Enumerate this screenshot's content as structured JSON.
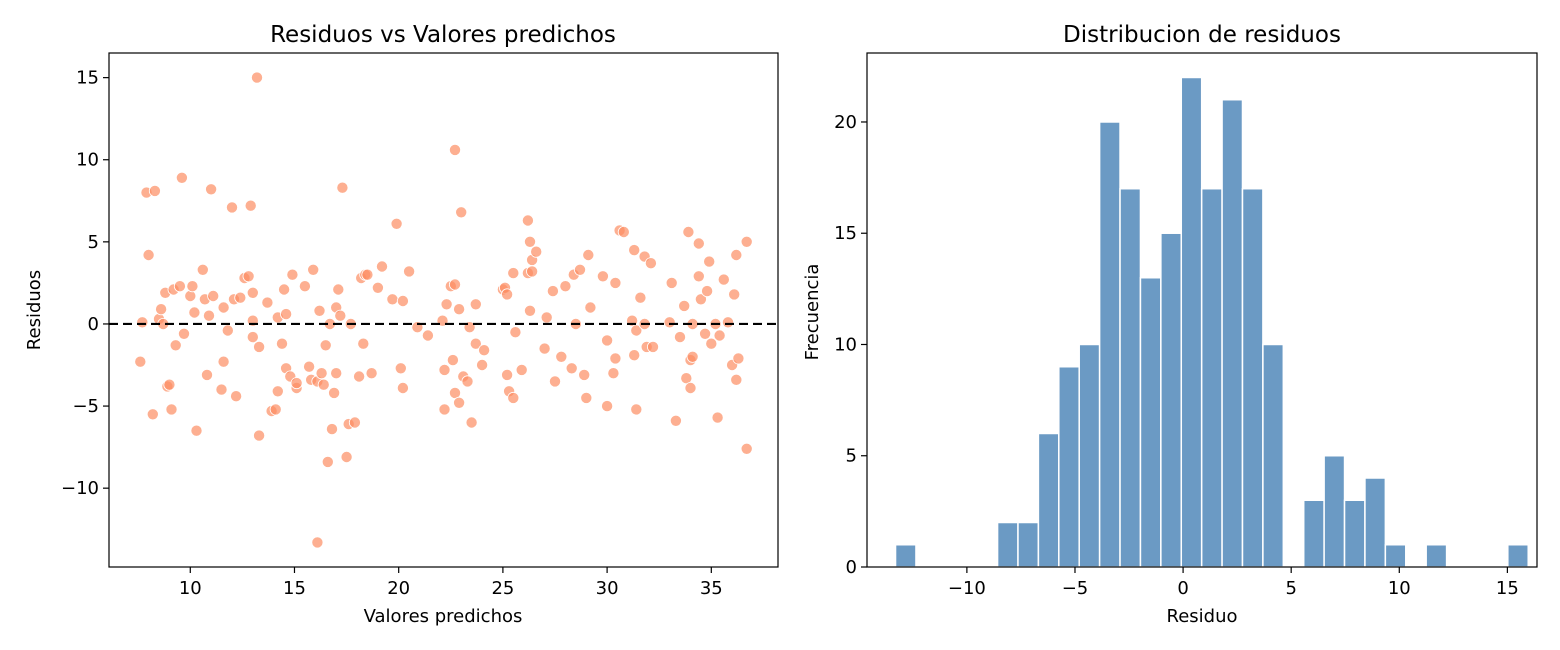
{
  "chart_data": [
    {
      "type": "scatter",
      "title": "Residuos vs Valores predichos",
      "xlabel": "Valores predichos",
      "ylabel": "Residuos",
      "xlim": [
        6.1,
        38.2
      ],
      "ylim": [
        -14.8,
        16.5
      ],
      "xticks": [
        10,
        15,
        20,
        25,
        30,
        35
      ],
      "xtick_labels": [
        "10",
        "15",
        "20",
        "25",
        "30",
        "35"
      ],
      "yticks": [
        -10,
        -5,
        0,
        5,
        10,
        15
      ],
      "ytick_labels": [
        "−10",
        "−5",
        "0",
        "5",
        "10",
        "15"
      ],
      "reference_line": {
        "y": 0,
        "style": "dashed",
        "color": "#000000"
      },
      "marker_color": "#fc8d62",
      "grid": false,
      "points": [
        [
          7.6,
          -2.3
        ],
        [
          7.7,
          0.1
        ],
        [
          7.9,
          8.0
        ],
        [
          8.0,
          4.2
        ],
        [
          8.2,
          -5.5
        ],
        [
          8.3,
          8.1
        ],
        [
          8.5,
          0.3
        ],
        [
          8.6,
          0.9
        ],
        [
          8.7,
          0.0
        ],
        [
          8.8,
          1.9
        ],
        [
          8.9,
          -3.8
        ],
        [
          9.0,
          -3.7
        ],
        [
          9.1,
          -5.2
        ],
        [
          9.2,
          2.1
        ],
        [
          9.3,
          -1.3
        ],
        [
          9.5,
          2.3
        ],
        [
          9.6,
          8.9
        ],
        [
          9.7,
          -0.6
        ],
        [
          10.0,
          1.7
        ],
        [
          10.1,
          2.3
        ],
        [
          10.2,
          0.7
        ],
        [
          10.3,
          -6.5
        ],
        [
          10.6,
          3.3
        ],
        [
          10.7,
          1.5
        ],
        [
          10.8,
          -3.1
        ],
        [
          10.9,
          0.5
        ],
        [
          11.0,
          8.2
        ],
        [
          11.1,
          1.7
        ],
        [
          11.5,
          -4.0
        ],
        [
          11.6,
          1.0
        ],
        [
          11.6,
          -2.3
        ],
        [
          11.8,
          -0.4
        ],
        [
          12.0,
          7.1
        ],
        [
          12.1,
          1.5
        ],
        [
          12.2,
          -4.4
        ],
        [
          12.4,
          1.6
        ],
        [
          12.6,
          2.8
        ],
        [
          12.8,
          2.9
        ],
        [
          12.9,
          7.2
        ],
        [
          13.0,
          1.9
        ],
        [
          13.0,
          0.2
        ],
        [
          13.0,
          -0.8
        ],
        [
          13.2,
          15.0
        ],
        [
          13.3,
          -6.8
        ],
        [
          13.3,
          -1.4
        ],
        [
          13.7,
          1.3
        ],
        [
          13.9,
          -5.3
        ],
        [
          14.1,
          -5.2
        ],
        [
          14.2,
          0.4
        ],
        [
          14.2,
          -4.1
        ],
        [
          14.4,
          -1.2
        ],
        [
          14.5,
          2.1
        ],
        [
          14.6,
          -2.7
        ],
        [
          14.6,
          0.6
        ],
        [
          14.8,
          -3.2
        ],
        [
          14.9,
          3.0
        ],
        [
          15.1,
          -3.9
        ],
        [
          15.1,
          -3.6
        ],
        [
          15.5,
          2.3
        ],
        [
          15.7,
          -2.6
        ],
        [
          15.8,
          -3.4
        ],
        [
          15.9,
          3.3
        ],
        [
          16.1,
          -3.5
        ],
        [
          16.1,
          -13.3
        ],
        [
          16.2,
          0.8
        ],
        [
          16.3,
          -3.0
        ],
        [
          16.4,
          -3.7
        ],
        [
          16.5,
          -1.3
        ],
        [
          16.6,
          -8.4
        ],
        [
          16.7,
          0.0
        ],
        [
          16.8,
          -6.4
        ],
        [
          16.9,
          -4.2
        ],
        [
          17.0,
          1.0
        ],
        [
          17.0,
          -3.0
        ],
        [
          17.1,
          2.1
        ],
        [
          17.2,
          0.5
        ],
        [
          17.3,
          8.3
        ],
        [
          17.5,
          -8.1
        ],
        [
          17.6,
          -6.1
        ],
        [
          17.7,
          0.0
        ],
        [
          17.9,
          -6.0
        ],
        [
          18.1,
          -3.2
        ],
        [
          18.2,
          2.8
        ],
        [
          18.3,
          -1.2
        ],
        [
          18.4,
          3.0
        ],
        [
          18.5,
          3.0
        ],
        [
          18.7,
          -3.0
        ],
        [
          19.0,
          2.2
        ],
        [
          19.2,
          3.5
        ],
        [
          19.7,
          1.5
        ],
        [
          19.9,
          6.1
        ],
        [
          20.1,
          -2.7
        ],
        [
          20.2,
          1.4
        ],
        [
          20.2,
          -3.9
        ],
        [
          20.5,
          3.2
        ],
        [
          20.9,
          -0.2
        ],
        [
          21.4,
          -0.7
        ],
        [
          22.1,
          0.2
        ],
        [
          22.2,
          -2.8
        ],
        [
          22.2,
          -5.2
        ],
        [
          22.3,
          1.2
        ],
        [
          22.5,
          2.3
        ],
        [
          22.6,
          -2.2
        ],
        [
          22.7,
          2.4
        ],
        [
          22.7,
          -4.2
        ],
        [
          22.7,
          10.6
        ],
        [
          22.9,
          0.9
        ],
        [
          22.9,
          -4.8
        ],
        [
          23.0,
          6.8
        ],
        [
          23.1,
          -3.2
        ],
        [
          23.3,
          -3.5
        ],
        [
          23.4,
          -0.2
        ],
        [
          23.5,
          -6.0
        ],
        [
          23.7,
          1.2
        ],
        [
          23.7,
          -1.2
        ],
        [
          24.0,
          -2.5
        ],
        [
          24.1,
          -1.6
        ],
        [
          25.0,
          2.1
        ],
        [
          25.1,
          2.2
        ],
        [
          25.2,
          -3.1
        ],
        [
          25.2,
          1.8
        ],
        [
          25.3,
          -4.1
        ],
        [
          25.5,
          -4.5
        ],
        [
          25.5,
          3.1
        ],
        [
          25.6,
          -0.5
        ],
        [
          25.9,
          -2.8
        ],
        [
          26.2,
          3.1
        ],
        [
          26.2,
          6.3
        ],
        [
          26.3,
          0.8
        ],
        [
          26.3,
          5.0
        ],
        [
          26.4,
          3.9
        ],
        [
          26.4,
          3.2
        ],
        [
          26.6,
          4.4
        ],
        [
          27.0,
          -1.5
        ],
        [
          27.1,
          0.4
        ],
        [
          27.4,
          2.0
        ],
        [
          27.5,
          -3.5
        ],
        [
          27.8,
          -2.0
        ],
        [
          28.0,
          2.3
        ],
        [
          28.3,
          -2.7
        ],
        [
          28.4,
          3.0
        ],
        [
          28.5,
          0.0
        ],
        [
          28.7,
          3.3
        ],
        [
          28.9,
          -3.1
        ],
        [
          29.0,
          -4.5
        ],
        [
          29.1,
          4.2
        ],
        [
          29.2,
          1.0
        ],
        [
          29.8,
          2.9
        ],
        [
          30.0,
          -5.0
        ],
        [
          30.0,
          -1.0
        ],
        [
          30.3,
          -3.0
        ],
        [
          30.4,
          -2.1
        ],
        [
          30.4,
          2.5
        ],
        [
          30.6,
          5.7
        ],
        [
          30.8,
          5.6
        ],
        [
          31.2,
          0.2
        ],
        [
          31.3,
          -1.9
        ],
        [
          31.3,
          4.5
        ],
        [
          31.4,
          -5.2
        ],
        [
          31.4,
          -0.4
        ],
        [
          31.6,
          1.6
        ],
        [
          31.8,
          0.0
        ],
        [
          31.8,
          4.1
        ],
        [
          31.9,
          -1.4
        ],
        [
          32.1,
          3.7
        ],
        [
          32.2,
          -1.4
        ],
        [
          33.0,
          0.1
        ],
        [
          33.1,
          2.5
        ],
        [
          33.3,
          -5.9
        ],
        [
          33.5,
          -0.8
        ],
        [
          33.7,
          1.1
        ],
        [
          33.8,
          -3.3
        ],
        [
          33.9,
          5.6
        ],
        [
          34.0,
          -3.9
        ],
        [
          34.0,
          -2.2
        ],
        [
          34.1,
          0.0
        ],
        [
          34.1,
          -2.0
        ],
        [
          34.4,
          4.9
        ],
        [
          34.4,
          2.9
        ],
        [
          34.5,
          1.5
        ],
        [
          34.7,
          -0.6
        ],
        [
          34.8,
          2.0
        ],
        [
          35.0,
          -1.2
        ],
        [
          34.9,
          3.8
        ],
        [
          35.2,
          0.0
        ],
        [
          35.3,
          -5.7
        ],
        [
          35.4,
          -0.7
        ],
        [
          35.6,
          2.7
        ],
        [
          35.8,
          0.1
        ],
        [
          36.0,
          -2.5
        ],
        [
          36.1,
          1.8
        ],
        [
          36.2,
          4.2
        ],
        [
          36.2,
          -3.4
        ],
        [
          36.3,
          -2.1
        ],
        [
          36.7,
          5.0
        ],
        [
          36.7,
          -7.6
        ]
      ]
    },
    {
      "type": "bar",
      "subtype": "histogram",
      "title": "Distribucion de residuos",
      "xlabel": "Residuo",
      "ylabel": "Frecuencia",
      "xlim": [
        -14.62,
        16.37
      ],
      "ylim": [
        0,
        23.1
      ],
      "xticks": [
        -10,
        -5,
        0,
        5,
        10,
        15
      ],
      "xtick_labels": [
        "−10",
        "−5",
        "0",
        "5",
        "10",
        "15"
      ],
      "yticks": [
        0,
        5,
        10,
        15,
        20
      ],
      "ytick_labels": [
        "0",
        "5",
        "10",
        "15",
        "20"
      ],
      "bar_color": "#5b8fbe",
      "grid": false,
      "bin_start": -13.3,
      "bin_width": 0.944,
      "counts": [
        1,
        0,
        0,
        0,
        0,
        2,
        2,
        6,
        9,
        10,
        20,
        17,
        13,
        15,
        22,
        17,
        21,
        17,
        10,
        0,
        3,
        5,
        3,
        4,
        1,
        0,
        1,
        0,
        0,
        0,
        1
      ]
    }
  ]
}
